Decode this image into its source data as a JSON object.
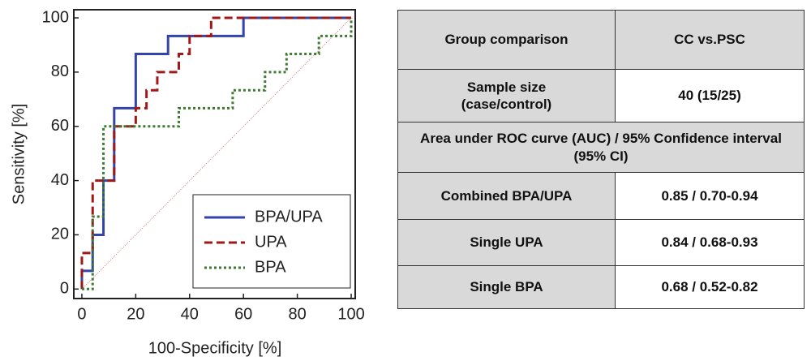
{
  "chart_data": {
    "type": "line",
    "x_label": "100-Specificity [%]",
    "y_label": "Sensitivity [%]",
    "xlim": [
      -3,
      101.5
    ],
    "ylim": [
      -3.5,
      103
    ],
    "xticks": [
      0,
      20,
      40,
      60,
      80,
      100
    ],
    "yticks": [
      0,
      20,
      40,
      60,
      80,
      100
    ],
    "legend": "lower right",
    "series": [
      {
        "name": "BPA/UPA",
        "color": "#3344aa",
        "style": "solid",
        "x": [
          0,
          0,
          4,
          4,
          8,
          8,
          12,
          12,
          20,
          20,
          32,
          32,
          60,
          60,
          100
        ],
        "y": [
          0,
          6.7,
          6.7,
          20,
          20,
          40,
          40,
          66.7,
          66.7,
          86.7,
          86.7,
          93.3,
          93.3,
          100,
          100
        ]
      },
      {
        "name": "UPA",
        "color": "#a01818",
        "style": "dashed",
        "x": [
          0,
          0,
          4,
          4,
          12,
          12,
          20,
          20,
          24,
          24,
          28,
          28,
          36,
          36,
          40,
          40,
          48,
          48,
          100
        ],
        "y": [
          0,
          13.3,
          13.3,
          40,
          40,
          60,
          60,
          66.7,
          66.7,
          73.3,
          73.3,
          80,
          80,
          86.7,
          86.7,
          93.3,
          93.3,
          100,
          100
        ]
      },
      {
        "name": "BPA",
        "color": "#3e7a32",
        "style": "dotted",
        "x": [
          0,
          4,
          4,
          8,
          8,
          36,
          36,
          56,
          56,
          68,
          68,
          76,
          76,
          88,
          88,
          100,
          100
        ],
        "y": [
          0,
          0,
          26.7,
          26.7,
          60,
          60,
          66.7,
          66.7,
          73.3,
          73.3,
          80,
          80,
          86.7,
          86.7,
          93.3,
          93.3,
          100
        ]
      }
    ]
  },
  "table": {
    "header": [
      "Group comparison",
      "CC vs.PSC"
    ],
    "rows": [
      [
        "Sample size\n(case/control)",
        "40 (15/25)"
      ],
      [
        "Area under ROC curve (AUC) / 95% Confidence interval (95% CI)"
      ],
      [
        "Combined BPA/UPA",
        "0.85 / 0.70-0.94"
      ],
      [
        "Single UPA",
        "0.84 / 0.68-0.93"
      ],
      [
        "Single BPA",
        "0.68 / 0.52-0.82"
      ]
    ]
  }
}
